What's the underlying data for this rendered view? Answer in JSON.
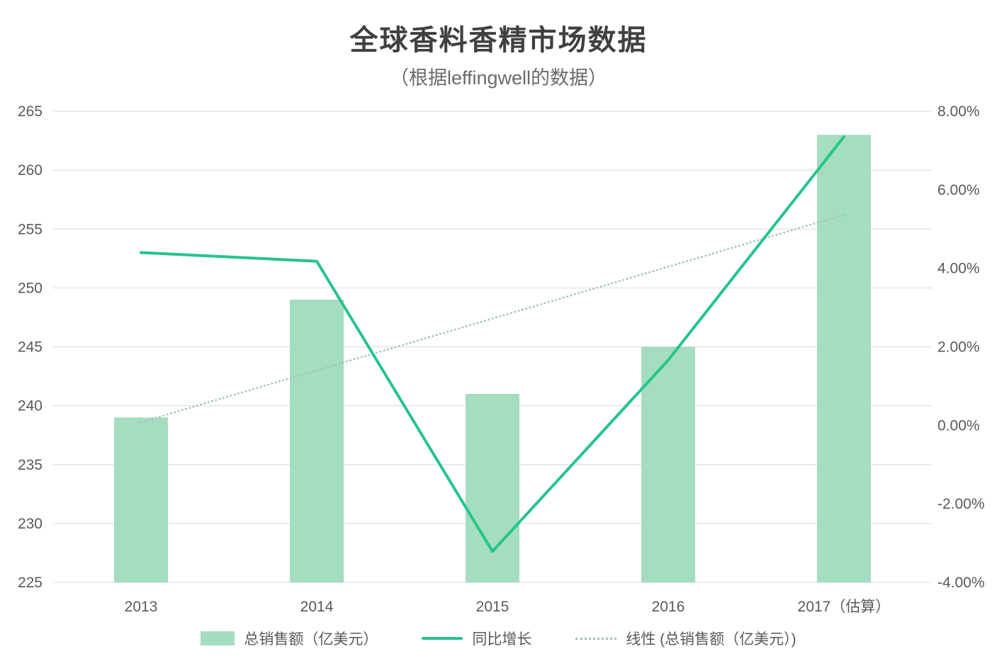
{
  "title": "全球香料香精市场数据",
  "subtitle": "（根据leffingwell的数据）",
  "chart_data": {
    "type": "combo",
    "categories": [
      "2013",
      "2014",
      "2015",
      "2016",
      "2017（估算）"
    ],
    "series": [
      {
        "name": "总销售额（亿美元）",
        "type": "bar",
        "axis": "left",
        "values": [
          239,
          249,
          241,
          245,
          263
        ],
        "color": "#a5ddc0"
      },
      {
        "name": "同比增长",
        "type": "line",
        "axis": "right",
        "values_pct": [
          4.4,
          4.18,
          -3.21,
          1.66,
          7.35
        ],
        "color": "#25c48b"
      },
      {
        "name": "线性 (总销售额（亿美元）)",
        "type": "trendline",
        "axis": "left",
        "of_series": "总销售额（亿美元）",
        "style": "dotted",
        "color": "#9fc0b8"
      }
    ],
    "left_axis": {
      "min": 225,
      "max": 265,
      "step": 5
    },
    "right_axis": {
      "min": -4,
      "max": 8,
      "step": 2,
      "format": "percent2"
    },
    "grid": true,
    "grid_color": "#d9d9d9",
    "axis_text_color": "#595959",
    "legend_position": "bottom"
  }
}
